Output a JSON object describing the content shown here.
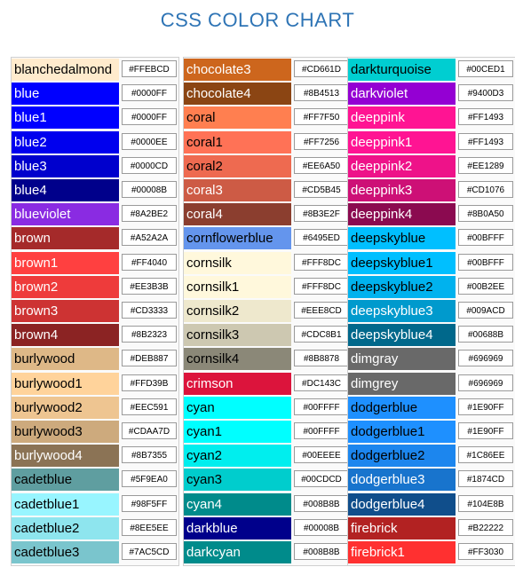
{
  "title": "CSS COLOR CHART",
  "columns": [
    [
      {
        "name": "blanchedalmond",
        "hex": "#FFEBCD",
        "color": "#FFEBCD",
        "text": "#000000"
      },
      {
        "name": "blue",
        "hex": "#0000FF",
        "color": "#0000FF",
        "text": "#ffffff"
      },
      {
        "name": "blue1",
        "hex": "#0000FF",
        "color": "#0000FF",
        "text": "#ffffff"
      },
      {
        "name": "blue2",
        "hex": "#0000EE",
        "color": "#0000EE",
        "text": "#ffffff"
      },
      {
        "name": "blue3",
        "hex": "#0000CD",
        "color": "#0000CD",
        "text": "#ffffff"
      },
      {
        "name": "blue4",
        "hex": "#00008B",
        "color": "#00008B",
        "text": "#ffffff"
      },
      {
        "name": "blueviolet",
        "hex": "#8A2BE2",
        "color": "#8A2BE2",
        "text": "#ffffff"
      },
      {
        "name": "brown",
        "hex": "#A52A2A",
        "color": "#A52A2A",
        "text": "#ffffff"
      },
      {
        "name": "brown1",
        "hex": "#FF4040",
        "color": "#FF4040",
        "text": "#ffffff"
      },
      {
        "name": "brown2",
        "hex": "#EE3B3B",
        "color": "#EE3B3B",
        "text": "#ffffff"
      },
      {
        "name": "brown3",
        "hex": "#CD3333",
        "color": "#CD3333",
        "text": "#ffffff"
      },
      {
        "name": "brown4",
        "hex": "#8B2323",
        "color": "#8B2323",
        "text": "#ffffff"
      },
      {
        "name": "burlywood",
        "hex": "#DEB887",
        "color": "#DEB887",
        "text": "#000000"
      },
      {
        "name": "burlywood1",
        "hex": "#FFD39B",
        "color": "#FFD39B",
        "text": "#000000"
      },
      {
        "name": "burlywood2",
        "hex": "#EEC591",
        "color": "#EEC591",
        "text": "#000000"
      },
      {
        "name": "burlywood3",
        "hex": "#CDAA7D",
        "color": "#CDAA7D",
        "text": "#000000"
      },
      {
        "name": "burlywood4",
        "hex": "#8B7355",
        "color": "#8B7355",
        "text": "#ffffff"
      },
      {
        "name": "cadetblue",
        "hex": "#5F9EA0",
        "color": "#5F9EA0",
        "text": "#000000"
      },
      {
        "name": "cadetblue1",
        "hex": "#98F5FF",
        "color": "#98F5FF",
        "text": "#000000"
      },
      {
        "name": "cadetblue2",
        "hex": "#8EE5EE",
        "color": "#8EE5EE",
        "text": "#000000"
      },
      {
        "name": "cadetblue3",
        "hex": "#7AC5CD",
        "color": "#7AC5CD",
        "text": "#000000"
      }
    ],
    [
      {
        "name": "chocolate3",
        "hex": "#CD661D",
        "color": "#CD661D",
        "text": "#ffffff"
      },
      {
        "name": "chocolate4",
        "hex": "#8B4513",
        "color": "#8B4513",
        "text": "#ffffff"
      },
      {
        "name": "coral",
        "hex": "#FF7F50",
        "color": "#FF7F50",
        "text": "#000000"
      },
      {
        "name": "coral1",
        "hex": "#FF7256",
        "color": "#FF7256",
        "text": "#000000"
      },
      {
        "name": "coral2",
        "hex": "#EE6A50",
        "color": "#EE6A50",
        "text": "#000000"
      },
      {
        "name": "coral3",
        "hex": "#CD5B45",
        "color": "#CD5B45",
        "text": "#ffffff"
      },
      {
        "name": "coral4",
        "hex": "#8B3E2F",
        "color": "#8B3E2F",
        "text": "#ffffff"
      },
      {
        "name": "cornflowerblue",
        "hex": "#6495ED",
        "color": "#6495ED",
        "text": "#000000"
      },
      {
        "name": "cornsilk",
        "hex": "#FFF8DC",
        "color": "#FFF8DC",
        "text": "#000000"
      },
      {
        "name": "cornsilk1",
        "hex": "#FFF8DC",
        "color": "#FFF8DC",
        "text": "#000000"
      },
      {
        "name": "cornsilk2",
        "hex": "#EEE8CD",
        "color": "#EEE8CD",
        "text": "#000000"
      },
      {
        "name": "cornsilk3",
        "hex": "#CDC8B1",
        "color": "#CDC8B1",
        "text": "#000000"
      },
      {
        "name": "cornsilk4",
        "hex": "#8B8878",
        "color": "#8B8878",
        "text": "#000000"
      },
      {
        "name": "crimson",
        "hex": "#DC143C",
        "color": "#DC143C",
        "text": "#ffffff"
      },
      {
        "name": "cyan",
        "hex": "#00FFFF",
        "color": "#00FFFF",
        "text": "#000000"
      },
      {
        "name": "cyan1",
        "hex": "#00FFFF",
        "color": "#00FFFF",
        "text": "#000000"
      },
      {
        "name": "cyan2",
        "hex": "#00EEEE",
        "color": "#00EEEE",
        "text": "#000000"
      },
      {
        "name": "cyan3",
        "hex": "#00CDCD",
        "color": "#00CDCD",
        "text": "#000000"
      },
      {
        "name": "cyan4",
        "hex": "#008B8B",
        "color": "#008B8B",
        "text": "#ffffff"
      },
      {
        "name": "darkblue",
        "hex": "#00008B",
        "color": "#00008B",
        "text": "#ffffff"
      },
      {
        "name": "darkcyan",
        "hex": "#008B8B",
        "color": "#008B8B",
        "text": "#ffffff"
      }
    ],
    [
      {
        "name": "darkturquoise",
        "hex": "#00CED1",
        "color": "#00CED1",
        "text": "#000000"
      },
      {
        "name": "darkviolet",
        "hex": "#9400D3",
        "color": "#9400D3",
        "text": "#ffffff"
      },
      {
        "name": "deeppink",
        "hex": "#FF1493",
        "color": "#FF1493",
        "text": "#ffffff"
      },
      {
        "name": "deeppink1",
        "hex": "#FF1493",
        "color": "#FF1493",
        "text": "#ffffff"
      },
      {
        "name": "deeppink2",
        "hex": "#EE1289",
        "color": "#EE1289",
        "text": "#ffffff"
      },
      {
        "name": "deeppink3",
        "hex": "#CD1076",
        "color": "#CD1076",
        "text": "#ffffff"
      },
      {
        "name": "deeppink4",
        "hex": "#8B0A50",
        "color": "#8B0A50",
        "text": "#ffffff"
      },
      {
        "name": "deepskyblue",
        "hex": "#00BFFF",
        "color": "#00BFFF",
        "text": "#000000"
      },
      {
        "name": "deepskyblue1",
        "hex": "#00BFFF",
        "color": "#00BFFF",
        "text": "#000000"
      },
      {
        "name": "deepskyblue2",
        "hex": "#00B2EE",
        "color": "#00B2EE",
        "text": "#000000"
      },
      {
        "name": "deepskyblue3",
        "hex": "#009ACD",
        "color": "#009ACD",
        "text": "#ffffff"
      },
      {
        "name": "deepskyblue4",
        "hex": "#00688B",
        "color": "#00688B",
        "text": "#ffffff"
      },
      {
        "name": "dimgray",
        "hex": "#696969",
        "color": "#696969",
        "text": "#ffffff"
      },
      {
        "name": "dimgrey",
        "hex": "#696969",
        "color": "#696969",
        "text": "#ffffff"
      },
      {
        "name": "dodgerblue",
        "hex": "#1E90FF",
        "color": "#1E90FF",
        "text": "#000000"
      },
      {
        "name": "dodgerblue1",
        "hex": "#1E90FF",
        "color": "#1E90FF",
        "text": "#000000"
      },
      {
        "name": "dodgerblue2",
        "hex": "#1C86EE",
        "color": "#1C86EE",
        "text": "#000000"
      },
      {
        "name": "dodgerblue3",
        "hex": "#1874CD",
        "color": "#1874CD",
        "text": "#ffffff"
      },
      {
        "name": "dodgerblue4",
        "hex": "#104E8B",
        "color": "#104E8B",
        "text": "#ffffff"
      },
      {
        "name": "firebrick",
        "hex": "#B22222",
        "color": "#B22222",
        "text": "#ffffff"
      },
      {
        "name": "firebrick1",
        "hex": "#FF3030",
        "color": "#FF3030",
        "text": "#ffffff"
      }
    ]
  ]
}
